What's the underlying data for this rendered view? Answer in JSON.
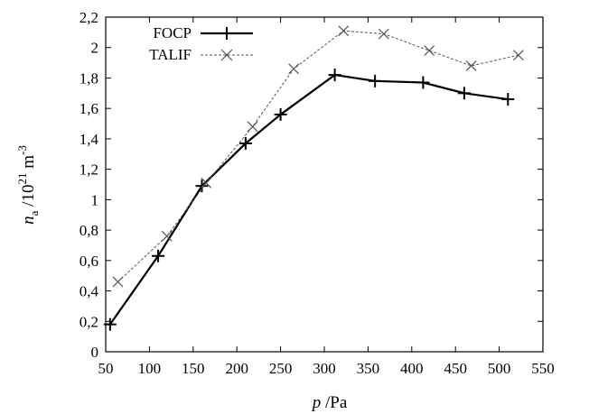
{
  "chart_data": {
    "type": "line",
    "xlabel": {
      "var": "p",
      "rest": " /Pa"
    },
    "ylabel": {
      "var": "n",
      "sub": "a",
      "rest1": " /10",
      "sup1": "21",
      "rest2": " m",
      "sup2": "-3"
    },
    "xlim": [
      50,
      550
    ],
    "ylim": [
      0,
      2.2
    ],
    "xticks": [
      50,
      100,
      150,
      200,
      250,
      300,
      350,
      400,
      450,
      500,
      550
    ],
    "xtick_labels": [
      "50",
      "100",
      "150",
      "200",
      "250",
      "300",
      "350",
      "400",
      "450",
      "500",
      "550"
    ],
    "yticks": [
      0,
      0.2,
      0.4,
      0.6,
      0.8,
      1.0,
      1.2,
      1.4,
      1.6,
      1.8,
      2.0,
      2.2
    ],
    "ytick_labels": [
      "0",
      "0,2",
      "0,4",
      "0,6",
      "0,8",
      "1",
      "1,2",
      "1,4",
      "1,6",
      "1,8",
      "2",
      "2,2"
    ],
    "grid": false,
    "legend_position": "top-left",
    "series": [
      {
        "name": "FOCP",
        "marker": "plus",
        "line": "solid",
        "color": "#000000",
        "x": [
          55,
          110,
          160,
          210,
          250,
          312,
          358,
          413,
          460,
          510
        ],
        "y": [
          0.18,
          0.63,
          1.09,
          1.37,
          1.56,
          1.82,
          1.78,
          1.77,
          1.7,
          1.66
        ]
      },
      {
        "name": "TALIF",
        "marker": "cross",
        "line": "dashed",
        "color": "#555555",
        "x": [
          64,
          120,
          165,
          218,
          265,
          322,
          368,
          420,
          468,
          522
        ],
        "y": [
          0.46,
          0.76,
          1.11,
          1.48,
          1.86,
          2.11,
          2.09,
          1.98,
          1.88,
          1.95
        ]
      }
    ]
  }
}
